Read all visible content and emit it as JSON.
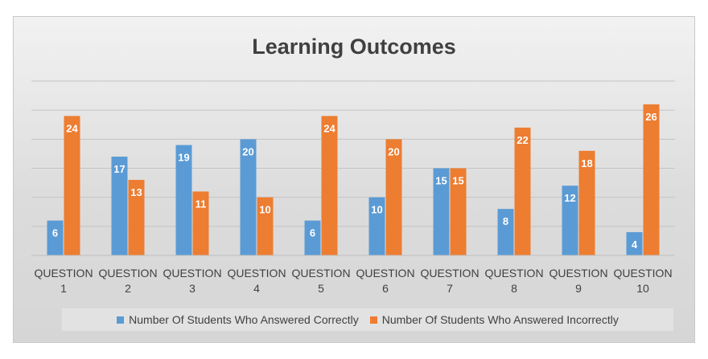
{
  "chart_data": {
    "type": "bar",
    "title": "Learning Outcomes",
    "categories": [
      [
        "QUESTION",
        "1"
      ],
      [
        "QUESTION",
        "2"
      ],
      [
        "QUESTION",
        "3"
      ],
      [
        "QUESTION",
        "4"
      ],
      [
        "QUESTION",
        "5"
      ],
      [
        "QUESTION",
        "6"
      ],
      [
        "QUESTION",
        "7"
      ],
      [
        "QUESTION",
        "8"
      ],
      [
        "QUESTION",
        "9"
      ],
      [
        "QUESTION",
        "10"
      ]
    ],
    "series": [
      {
        "name": "Number Of Students Who Answered Correctly",
        "color": "#5b9bd5",
        "values": [
          6,
          17,
          19,
          20,
          6,
          10,
          15,
          8,
          12,
          4
        ]
      },
      {
        "name": "Number Of Students Who Answered Incorrectly",
        "color": "#ed7d31",
        "values": [
          24,
          13,
          11,
          10,
          24,
          20,
          15,
          22,
          18,
          26
        ]
      }
    ],
    "ylim": [
      0,
      30
    ],
    "grid": true,
    "data_labels": true,
    "legend_position": "bottom"
  }
}
